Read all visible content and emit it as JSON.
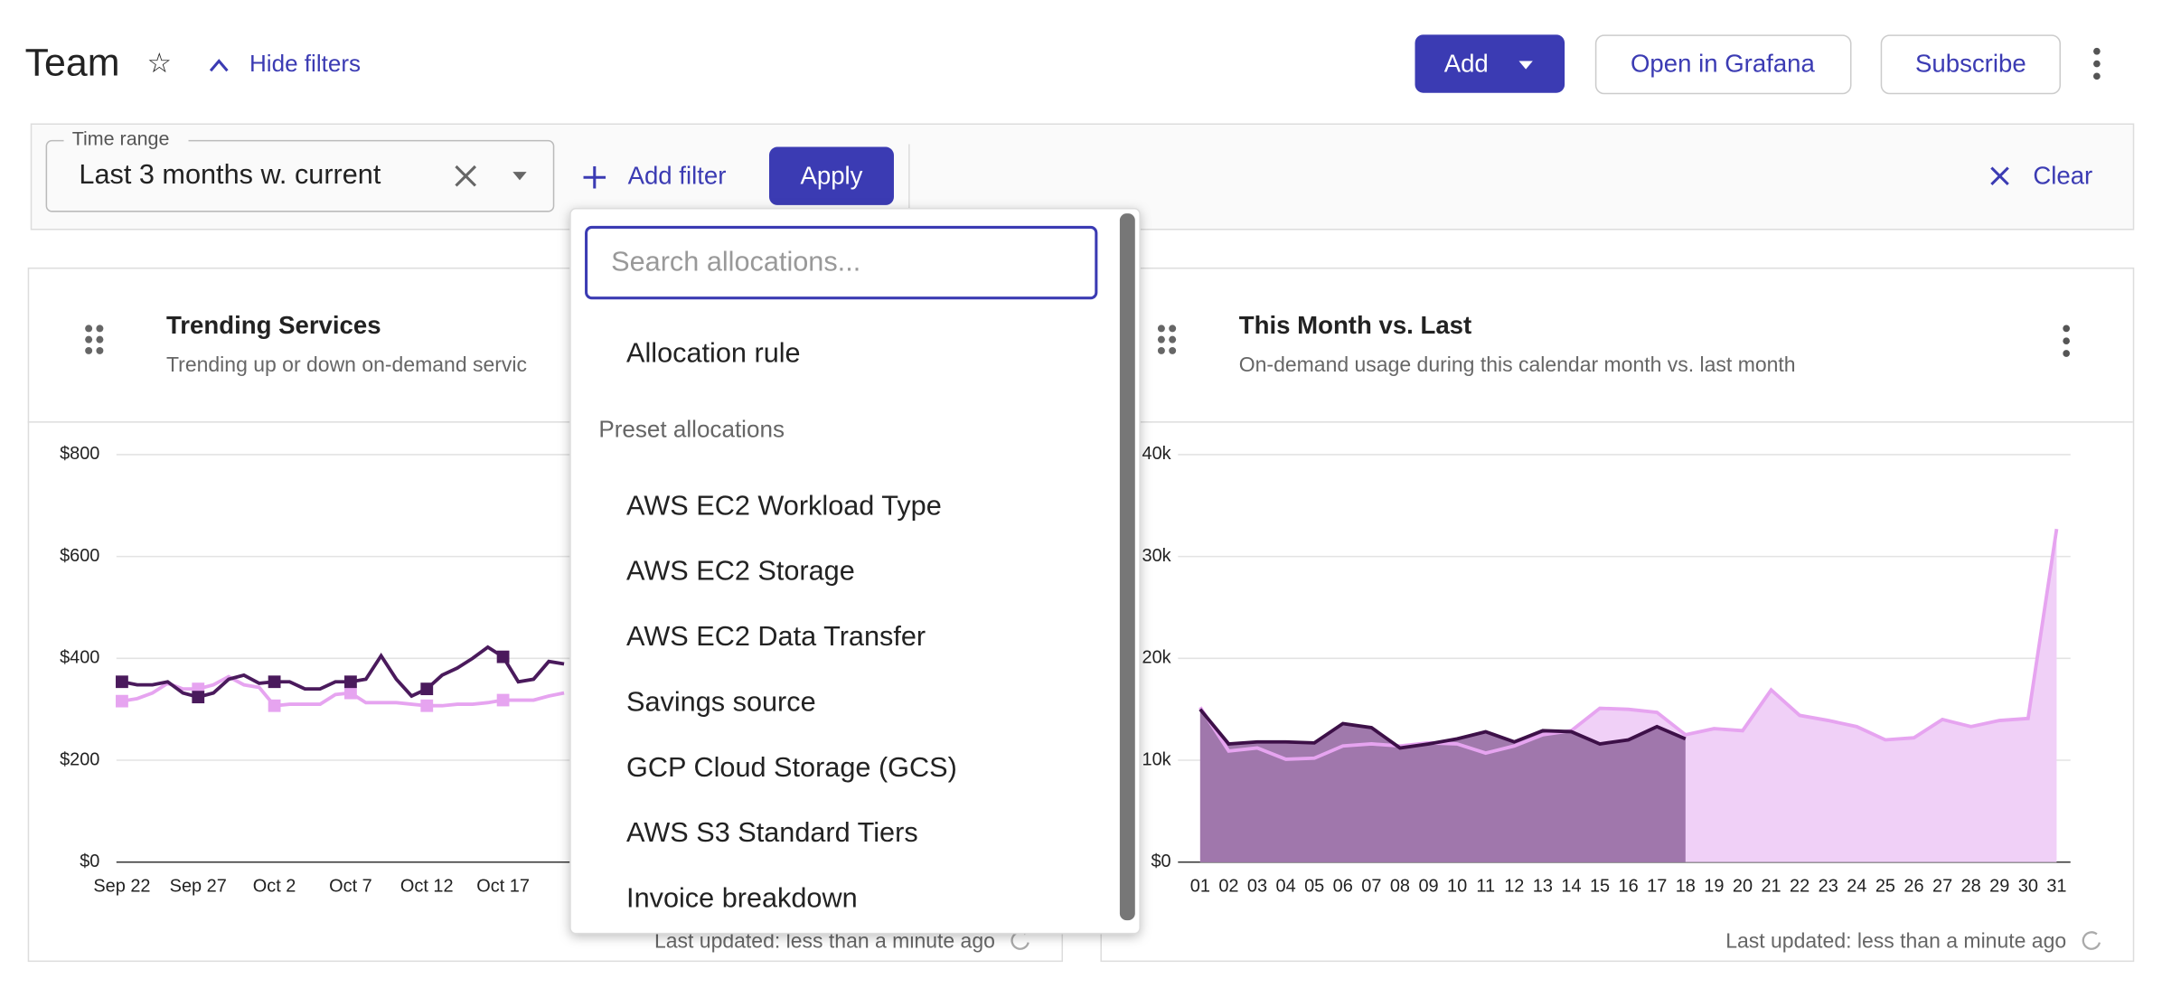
{
  "header": {
    "title": "Team",
    "hide_filters": "Hide filters",
    "buttons": [
      "Add",
      "Open in Grafana",
      "Subscribe"
    ]
  },
  "filters": {
    "time_range_label": "Time range",
    "time_range_value": "Last 3 months w. current",
    "add_filter": "Add filter",
    "apply": "Apply",
    "clear": "Clear"
  },
  "dropdown": {
    "search_placeholder": "Search allocations...",
    "top_item": "Allocation rule",
    "section": "Preset allocations",
    "items": [
      "AWS EC2 Workload Type",
      "AWS EC2 Storage",
      "AWS EC2 Data Transfer",
      "Savings source",
      "GCP Cloud Storage (GCS)",
      "AWS S3 Standard Tiers",
      "Invoice breakdown"
    ]
  },
  "widgets": [
    {
      "title": "Trending Services",
      "subtitle": "Trending up or down on-demand servic",
      "footer": "Last updated: less than a minute ago",
      "chart": {
        "type": "line",
        "categories": [
          "Sep 22",
          null,
          null,
          null,
          null,
          "Sep 27",
          null,
          null,
          null,
          null,
          "Oct 2",
          null,
          null,
          null,
          null,
          "Oct 7",
          null,
          null,
          null,
          null,
          "Oct 12",
          null,
          null,
          null,
          null,
          "Oct 17",
          null,
          null,
          null,
          null
        ],
        "ylim": [
          0,
          800
        ],
        "yticks": [
          {
            "value": 0,
            "label": "$0"
          },
          {
            "value": 200,
            "label": "$200"
          },
          {
            "value": 400,
            "label": "$400"
          },
          {
            "value": 600,
            "label": "$600"
          },
          {
            "value": 800,
            "label": "$800"
          }
        ],
        "series": [
          {
            "color": "#4a1a5c",
            "values": [
              354,
              348,
              348,
              354,
              332,
              324,
              332,
              359,
              367,
              351,
              354,
              354,
              340,
              340,
              354,
              354,
              359,
              405,
              359,
              326,
              340,
              367,
              381,
              400,
              422,
              403,
              354,
              359,
              394,
              389
            ]
          },
          {
            "color": "#e6a4f0",
            "values": [
              316,
              321,
              332,
              351,
              340,
              340,
              348,
              364,
              348,
              343,
              307,
              310,
              310,
              310,
              329,
              332,
              313,
              313,
              313,
              310,
              307,
              307,
              310,
              310,
              313,
              318,
              318,
              318,
              326,
              332
            ]
          }
        ]
      }
    },
    {
      "title": "This Month vs. Last",
      "subtitle": "On-demand usage during this calendar month vs. last month",
      "footer": "Last updated: less than a minute ago",
      "chart": {
        "type": "area",
        "categories": [
          "01",
          "02",
          "03",
          "04",
          "05",
          "06",
          "07",
          "08",
          "09",
          "10",
          "11",
          "12",
          "13",
          "14",
          "15",
          "16",
          "17",
          "18",
          "19",
          "20",
          "21",
          "22",
          "23",
          "24",
          "25",
          "26",
          "27",
          "28",
          "29",
          "30",
          "31"
        ],
        "ylim": [
          0,
          40000
        ],
        "yticks": [
          {
            "value": 0,
            "label": "$0"
          },
          {
            "value": 10000,
            "label": "10k"
          },
          {
            "value": 20000,
            "label": "20k"
          },
          {
            "value": 30000,
            "label": "30k"
          },
          {
            "value": 40000,
            "label": "40k"
          }
        ],
        "series": [
          {
            "color": "#e6a4f0",
            "fill": "#f0d0f7",
            "values": [
              15200,
              10900,
              11200,
              10100,
              10200,
              11400,
              11600,
              11400,
              11700,
              11600,
              10700,
              11400,
              12500,
              12900,
              15100,
              15000,
              14700,
              12500,
              13100,
              12900,
              16900,
              14400,
              13900,
              13300,
              12000,
              12200,
              14000,
              13300,
              13900,
              14100,
              32700
            ]
          },
          {
            "color": "#3d1048",
            "fill": "#9b72a8",
            "values": [
              15000,
              11600,
              11800,
              11800,
              11700,
              13600,
              13200,
              11200,
              11600,
              12100,
              12800,
              11800,
              12900,
              12800,
              11600,
              12000,
              13300,
              12100
            ]
          }
        ]
      }
    }
  ]
}
